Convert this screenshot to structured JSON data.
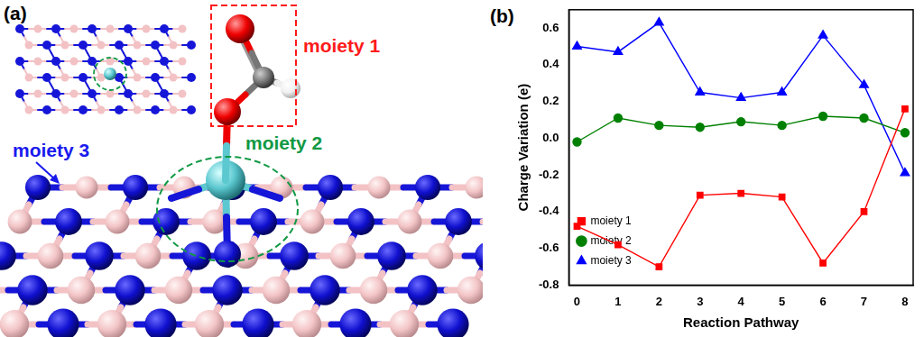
{
  "figure": {
    "panel_labels": [
      "(a)",
      "(b)"
    ],
    "diagram": {
      "labels": [
        {
          "text": "moiety 1",
          "color": "#ff1a1a"
        },
        {
          "text": "moiety 2",
          "color": "#119944"
        },
        {
          "text": "moiety 3",
          "color": "#1a1aee"
        }
      ]
    }
  },
  "chart_data": {
    "type": "line",
    "x_label": "Reaction Pathway",
    "y_label": "Charge Variation (e)",
    "x": [
      0,
      1,
      2,
      3,
      4,
      5,
      6,
      7,
      8
    ],
    "series": [
      {
        "name": "moiety 1",
        "color": "#ff0000",
        "marker": "square",
        "values": [
          -0.48,
          -0.58,
          -0.7,
          -0.31,
          -0.3,
          -0.32,
          -0.68,
          -0.4,
          0.16
        ]
      },
      {
        "name": "moiety 2",
        "color": "#008000",
        "marker": "circle",
        "values": [
          -0.02,
          0.11,
          0.07,
          0.06,
          0.09,
          0.07,
          0.12,
          0.11,
          0.03
        ]
      },
      {
        "name": "moiety 3",
        "color": "#0000ff",
        "marker": "triangle",
        "values": [
          0.5,
          0.47,
          0.63,
          0.25,
          0.22,
          0.25,
          0.56,
          0.29,
          -0.19
        ]
      }
    ],
    "xlim": [
      -0.2,
      8.2
    ],
    "xticks": [
      0,
      1,
      2,
      3,
      4,
      5,
      6,
      7,
      8
    ],
    "ylim": [
      -0.8,
      0.7
    ],
    "yticks": [
      -0.8,
      -0.6,
      -0.4,
      -0.2,
      {
        "value": 0,
        "label": "0.0"
      },
      0.2,
      0.4,
      0.6
    ],
    "grid": false,
    "legend": "top-right"
  }
}
